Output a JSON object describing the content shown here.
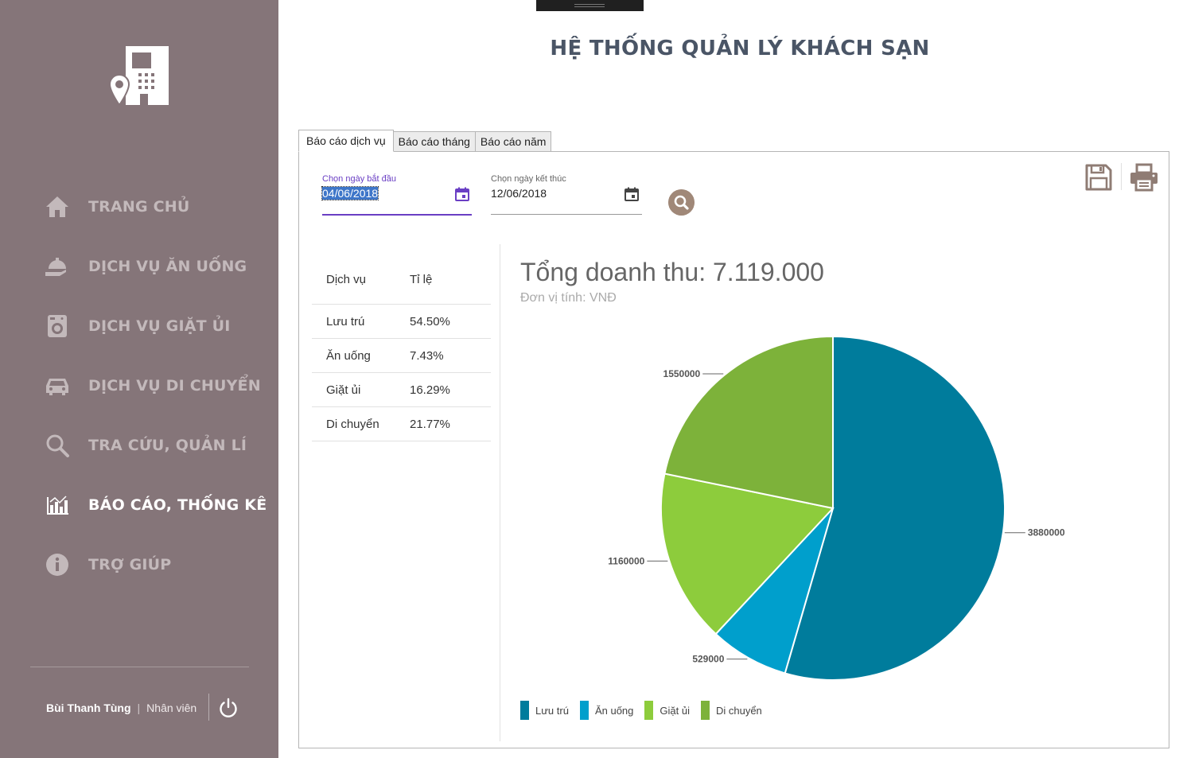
{
  "app": {
    "title": "HỆ THỐNG QUẢN LÝ KHÁCH SẠN"
  },
  "sidebar": {
    "items": [
      {
        "label": "TRANG CHỦ",
        "icon": "home-icon",
        "active": false
      },
      {
        "label": "DỊCH VỤ ĂN UỐNG",
        "icon": "food-service-icon",
        "active": false
      },
      {
        "label": "DỊCH VỤ GIẶT ỦI",
        "icon": "laundry-icon",
        "active": false
      },
      {
        "label": "DỊCH VỤ DI CHUYỂN",
        "icon": "car-icon",
        "active": false
      },
      {
        "label": "TRA CỨU, QUẢN LÍ",
        "icon": "search-icon",
        "active": false
      },
      {
        "label": "BÁO CÁO, THỐNG KÊ",
        "icon": "report-icon",
        "active": true
      },
      {
        "label": "TRỢ GIÚP",
        "icon": "info-icon",
        "active": false
      }
    ],
    "user": {
      "name": "Bùi Thanh Tùng",
      "separator": "|",
      "role": "Nhân viên"
    }
  },
  "tabs": [
    {
      "label": "Báo cáo dịch vụ",
      "active": true
    },
    {
      "label": "Báo cáo tháng",
      "active": false
    },
    {
      "label": "Báo cáo năm",
      "active": false
    }
  ],
  "filters": {
    "start": {
      "label": "Chọn ngày bắt đầu",
      "value": "04/06/2018"
    },
    "end": {
      "label": "Chọn ngày kết thúc",
      "value": "12/06/2018"
    }
  },
  "table": {
    "headers": [
      "Dịch vụ",
      "Tỉ lệ"
    ],
    "rows": [
      {
        "service": "Lưu trú",
        "ratio": "54.50%"
      },
      {
        "service": "Ăn uống",
        "ratio": "7.43%"
      },
      {
        "service": "Giặt ủi",
        "ratio": "16.29%"
      },
      {
        "service": "Di chuyển",
        "ratio": "21.77%"
      }
    ]
  },
  "chart": {
    "title": "Tổng doanh thu: 7.119.000",
    "subtitle": "Đơn vị tính: VNĐ"
  },
  "chart_data": {
    "type": "pie",
    "title": "Tổng doanh thu: 7.119.000",
    "subtitle": "Đơn vị tính: VNĐ",
    "legend_position": "bottom-left",
    "slices": [
      {
        "name": "Lưu trú",
        "value": 3880000,
        "label": "3880000",
        "color": "#007c9c"
      },
      {
        "name": "Ăn uống",
        "value": 529000,
        "label": "529000",
        "color": "#009fcc"
      },
      {
        "name": "Giặt ủi",
        "value": 1160000,
        "label": "1160000",
        "color": "#8dcc3c"
      },
      {
        "name": "Di chuyển",
        "value": 1550000,
        "label": "1550000",
        "color": "#7db23a"
      }
    ]
  },
  "colors": {
    "sidebar_bg": "#857579",
    "accent_purple": "#6a3fc4",
    "search_btn": "#a08878",
    "icon_brown": "#8f7c74"
  }
}
